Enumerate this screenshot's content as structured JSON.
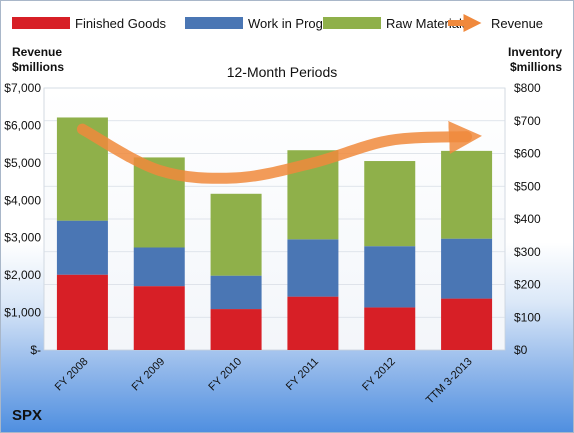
{
  "chart_data": {
    "type": "bar",
    "subtitle": "12-Month Periods",
    "company": "SPX",
    "left_axis_title": [
      "Revenue",
      "$millions"
    ],
    "right_axis_title": [
      "Inventory",
      "$millions"
    ],
    "categories": [
      "FY 2008",
      "FY 2009",
      "FY 2010",
      "FY 2011",
      "FY 2012",
      "TTM 3-2013"
    ],
    "series": [
      {
        "name": "Finished Goods",
        "axis": "right",
        "stacked": true,
        "color": "#d71f26",
        "values": [
          230,
          195,
          125,
          163,
          130,
          157
        ]
      },
      {
        "name": "Work in Progress",
        "axis": "right",
        "stacked": true,
        "color": "#4a76b4",
        "values": [
          165,
          118,
          102,
          175,
          187,
          183
        ]
      },
      {
        "name": "Raw Materials",
        "axis": "right",
        "stacked": true,
        "color": "#8fb04a",
        "values": [
          315,
          275,
          250,
          272,
          260,
          268
        ]
      },
      {
        "name": "Revenue",
        "axis": "left",
        "type": "line",
        "color": "#f0893c",
        "values": [
          5900,
          4800,
          4600,
          5000,
          5600,
          5700
        ]
      }
    ],
    "left_axis": {
      "min": 0,
      "max": 7000,
      "step": 1000,
      "tick_labels": [
        "$-",
        "$1,000",
        "$2,000",
        "$3,000",
        "$4,000",
        "$5,000",
        "$6,000",
        "$7,000"
      ]
    },
    "right_axis": {
      "min": 0,
      "max": 800,
      "step": 100,
      "tick_labels": [
        "$0",
        "$100",
        "$200",
        "$300",
        "$400",
        "$500",
        "$600",
        "$700",
        "$800"
      ]
    },
    "grid": true,
    "legend_position": "top"
  }
}
